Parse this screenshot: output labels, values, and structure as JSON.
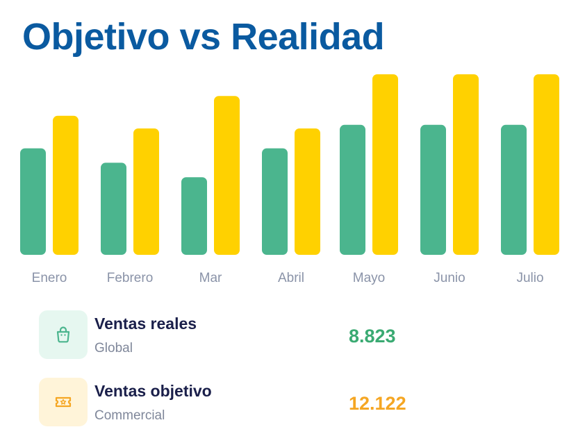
{
  "header": {
    "title": "Objetivo vs Realidad"
  },
  "colors": {
    "title": "#0a5aa0",
    "real": "#4bb58e",
    "target": "#ffd100",
    "real_bg": "#e6f7f0",
    "target_bg": "#fff4d9",
    "target_value": "#f5a623"
  },
  "chart_data": {
    "type": "bar",
    "categories": [
      "Enero",
      "Febrero",
      "Mar",
      "Abril",
      "Mayo",
      "Junio",
      "Julio"
    ],
    "series": [
      {
        "name": "Ventas reales",
        "values": [
          59,
          51,
          43,
          59,
          72,
          72,
          72
        ]
      },
      {
        "name": "Ventas objetivo",
        "values": [
          77,
          70,
          88,
          70,
          100,
          100,
          100
        ]
      }
    ],
    "ylim": [
      0,
      100
    ],
    "grid": false,
    "xlabel": "",
    "ylabel": ""
  },
  "legend": [
    {
      "name": "Ventas reales",
      "subtitle": "Global",
      "value": "8.823",
      "icon": "shopping-bag-icon"
    },
    {
      "name": "Ventas objetivo",
      "subtitle": "Commercial",
      "value": "12.122",
      "icon": "ticket-icon"
    }
  ]
}
